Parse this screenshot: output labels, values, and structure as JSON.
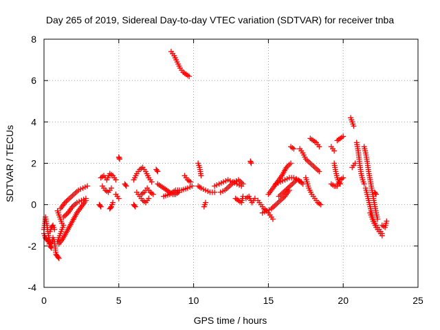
{
  "chart_data": {
    "type": "scatter",
    "title": "Day 265 of 2019, Sidereal Day-to-day VTEC variation (SDTVAR) for receiver tnba",
    "xlabel": "GPS time / hours",
    "ylabel": "SDTVAR / TECUs",
    "xlim": [
      0,
      25
    ],
    "ylim": [
      -4,
      8
    ],
    "x_ticks": [
      0,
      5,
      10,
      15,
      20,
      25
    ],
    "y_ticks": [
      -4,
      -2,
      0,
      2,
      4,
      6,
      8
    ],
    "x_tick_labels": [
      "0",
      "5",
      "10",
      "15",
      "20",
      "25"
    ],
    "y_tick_labels": [
      "-4",
      "-2",
      "0",
      "2",
      "4",
      "6",
      "8"
    ],
    "grid": true,
    "marker": "+",
    "marker_color": "#ff0000",
    "series": [
      {
        "name": "tnba",
        "segments": [
          [
            [
              0.0,
              -1.2
            ],
            [
              0.1,
              -0.6
            ],
            [
              0.2,
              -1.0
            ],
            [
              0.3,
              -1.5
            ],
            [
              0.4,
              -1.8
            ],
            [
              0.5,
              -1.9
            ],
            [
              0.6,
              -1.6
            ],
            [
              0.7,
              -1.8
            ],
            [
              0.8,
              -2.4
            ],
            [
              0.9,
              -2.5
            ],
            [
              1.0,
              -2.6
            ]
          ],
          [
            [
              0.0,
              -1.4
            ],
            [
              0.1,
              -1.6
            ],
            [
              0.2,
              -1.7
            ],
            [
              0.3,
              -1.8
            ],
            [
              0.4,
              -2.0
            ],
            [
              0.5,
              -2.1
            ]
          ],
          [
            [
              0.4,
              -1.3
            ],
            [
              0.5,
              -1.1
            ],
            [
              0.6,
              -1.0
            ],
            [
              0.7,
              -1.2
            ]
          ],
          [
            [
              0.9,
              -1.8
            ],
            [
              1.0,
              -1.6
            ],
            [
              1.1,
              -1.4
            ],
            [
              1.2,
              -1.2
            ],
            [
              1.3,
              -1.0
            ]
          ],
          [
            [
              0.9,
              -0.3
            ],
            [
              1.0,
              -0.5
            ],
            [
              1.1,
              -0.7
            ],
            [
              1.2,
              -0.9
            ]
          ],
          [
            [
              1.0,
              -1.9
            ],
            [
              1.3,
              -1.6
            ],
            [
              1.6,
              -1.2
            ],
            [
              1.9,
              -0.8
            ],
            [
              2.2,
              -0.4
            ],
            [
              2.5,
              -0.1
            ],
            [
              2.8,
              0.2
            ]
          ],
          [
            [
              1.1,
              -0.2
            ],
            [
              1.4,
              0.1
            ],
            [
              1.7,
              0.3
            ],
            [
              2.0,
              0.5
            ],
            [
              2.3,
              0.7
            ],
            [
              2.6,
              0.8
            ],
            [
              2.9,
              0.9
            ]
          ],
          [
            [
              1.3,
              -0.6
            ],
            [
              1.6,
              -0.4
            ],
            [
              1.9,
              -0.1
            ],
            [
              2.2,
              0.1
            ],
            [
              2.5,
              0.2
            ],
            [
              2.8,
              0.3
            ]
          ],
          [
            [
              3.8,
              1.3
            ],
            [
              4.0,
              1.4
            ],
            [
              4.2,
              1.2
            ],
            [
              4.4,
              1.5
            ],
            [
              4.6,
              1.4
            ],
            [
              4.8,
              1.2
            ]
          ],
          [
            [
              3.9,
              0.9
            ],
            [
              4.1,
              0.7
            ],
            [
              4.3,
              0.6
            ],
            [
              4.5,
              0.8
            ]
          ],
          [
            [
              3.7,
              0.0
            ],
            [
              3.8,
              -0.1
            ]
          ],
          [
            [
              4.4,
              -0.2
            ],
            [
              4.5,
              -0.1
            ],
            [
              4.6,
              0.1
            ]
          ],
          [
            [
              4.8,
              0.5
            ],
            [
              5.0,
              0.3
            ]
          ],
          [
            [
              5.0,
              2.3
            ],
            [
              5.05,
              2.2
            ]
          ],
          [
            [
              5.4,
              1.0
            ],
            [
              5.5,
              0.9
            ]
          ],
          [
            [
              6.0,
              0.0
            ],
            [
              6.1,
              -0.1
            ]
          ],
          [
            [
              6.0,
              1.2
            ],
            [
              6.2,
              1.5
            ],
            [
              6.4,
              1.7
            ],
            [
              6.6,
              1.8
            ],
            [
              6.8,
              1.6
            ],
            [
              7.0,
              1.3
            ],
            [
              7.2,
              1.1
            ]
          ],
          [
            [
              6.2,
              0.6
            ],
            [
              6.4,
              0.4
            ],
            [
              6.6,
              0.2
            ],
            [
              6.8,
              0.1
            ],
            [
              7.0,
              0.3
            ]
          ],
          [
            [
              6.5,
              0.5
            ],
            [
              6.7,
              0.6
            ],
            [
              6.9,
              0.8
            ],
            [
              7.1,
              0.6
            ],
            [
              7.3,
              0.5
            ]
          ],
          [
            [
              7.5,
              1.7
            ],
            [
              7.6,
              1.6
            ]
          ],
          [
            [
              7.6,
              1.0
            ],
            [
              7.8,
              0.9
            ],
            [
              8.0,
              0.8
            ],
            [
              8.2,
              0.7
            ],
            [
              8.4,
              0.6
            ],
            [
              8.6,
              0.5
            ],
            [
              8.8,
              0.5
            ],
            [
              9.0,
              0.6
            ]
          ],
          [
            [
              8.5,
              7.4
            ],
            [
              8.7,
              7.2
            ],
            [
              8.9,
              6.9
            ],
            [
              9.1,
              6.6
            ],
            [
              9.3,
              6.4
            ],
            [
              9.5,
              6.3
            ],
            [
              9.7,
              6.2
            ]
          ],
          [
            [
              8.0,
              0.4
            ],
            [
              8.4,
              0.5
            ],
            [
              8.8,
              0.7
            ],
            [
              9.2,
              0.7
            ],
            [
              9.6,
              0.8
            ],
            [
              9.9,
              0.9
            ]
          ],
          [
            [
              9.4,
              1.4
            ],
            [
              9.6,
              1.2
            ],
            [
              9.8,
              1.1
            ]
          ],
          [
            [
              10.3,
              2.0
            ],
            [
              10.4,
              1.8
            ],
            [
              10.5,
              1.4
            ]
          ],
          [
            [
              10.3,
              0.9
            ],
            [
              10.5,
              0.8
            ],
            [
              10.8,
              0.7
            ],
            [
              11.1,
              0.6
            ],
            [
              11.4,
              0.6
            ]
          ],
          [
            [
              10.7,
              -0.1
            ],
            [
              10.8,
              0.1
            ]
          ],
          [
            [
              11.4,
              0.9
            ],
            [
              11.7,
              1.0
            ],
            [
              12.0,
              1.1
            ],
            [
              12.3,
              1.2
            ],
            [
              12.6,
              1.1
            ],
            [
              12.9,
              1.0
            ],
            [
              13.2,
              0.9
            ]
          ],
          [
            [
              11.8,
              0.6
            ],
            [
              12.1,
              0.7
            ],
            [
              12.4,
              0.9
            ],
            [
              12.7,
              1.1
            ],
            [
              13.0,
              1.2
            ],
            [
              13.3,
              1.0
            ]
          ],
          [
            [
              12.8,
              0.3
            ],
            [
              13.0,
              0.2
            ],
            [
              13.2,
              0.1
            ],
            [
              13.3,
              0.4
            ]
          ],
          [
            [
              13.8,
              2.1
            ],
            [
              13.85,
              2.0
            ]
          ],
          [
            [
              13.5,
              0.3
            ],
            [
              13.7,
              0.4
            ],
            [
              13.9,
              0.1
            ],
            [
              14.1,
              0.3
            ]
          ],
          [
            [
              14.3,
              0.2
            ],
            [
              14.5,
              0.0
            ],
            [
              14.7,
              -0.2
            ],
            [
              14.9,
              -0.3
            ],
            [
              15.1,
              -0.5
            ],
            [
              15.3,
              -0.7
            ]
          ],
          [
            [
              14.6,
              -0.4
            ],
            [
              14.9,
              -0.3
            ],
            [
              15.2,
              -0.2
            ],
            [
              15.5,
              0.0
            ],
            [
              15.8,
              0.2
            ],
            [
              16.1,
              0.4
            ],
            [
              16.4,
              0.7
            ]
          ],
          [
            [
              15.0,
              0.5
            ],
            [
              15.3,
              0.8
            ],
            [
              15.6,
              1.1
            ],
            [
              15.9,
              1.4
            ],
            [
              16.2,
              1.8
            ],
            [
              16.5,
              2.0
            ]
          ],
          [
            [
              15.5,
              1.0
            ],
            [
              15.8,
              1.1
            ],
            [
              16.1,
              1.2
            ],
            [
              16.4,
              1.3
            ],
            [
              16.7,
              1.3
            ],
            [
              17.0,
              1.2
            ],
            [
              17.3,
              1.0
            ]
          ],
          [
            [
              15.7,
              0.4
            ],
            [
              16.0,
              0.6
            ],
            [
              16.3,
              0.8
            ],
            [
              16.6,
              1.0
            ],
            [
              16.9,
              1.2
            ],
            [
              17.2,
              1.1
            ]
          ],
          [
            [
              16.5,
              2.8
            ],
            [
              16.7,
              2.7
            ]
          ],
          [
            [
              17.1,
              2.7
            ],
            [
              17.3,
              2.5
            ],
            [
              17.5,
              2.2
            ],
            [
              17.8,
              2.0
            ],
            [
              18.1,
              1.8
            ],
            [
              18.4,
              1.6
            ]
          ],
          [
            [
              17.5,
              1.3
            ],
            [
              17.7,
              0.8
            ],
            [
              17.9,
              0.5
            ],
            [
              18.1,
              0.3
            ],
            [
              18.3,
              0.1
            ],
            [
              18.5,
              0.0
            ]
          ],
          [
            [
              17.8,
              3.2
            ],
            [
              18.0,
              3.1
            ],
            [
              18.2,
              3.0
            ],
            [
              18.4,
              2.8
            ]
          ],
          [
            [
              19.2,
              2.8
            ],
            [
              19.4,
              2.6
            ]
          ],
          [
            [
              19.4,
              2.0
            ],
            [
              19.5,
              1.6
            ],
            [
              19.6,
              1.3
            ],
            [
              19.7,
              1.1
            ],
            [
              19.8,
              1.0
            ]
          ],
          [
            [
              19.2,
              1.0
            ],
            [
              19.4,
              0.9
            ],
            [
              19.6,
              0.9
            ],
            [
              19.8,
              1.2
            ],
            [
              20.0,
              1.3
            ]
          ],
          [
            [
              19.6,
              3.1
            ],
            [
              19.8,
              3.2
            ],
            [
              20.0,
              3.3
            ]
          ],
          [
            [
              20.5,
              4.2
            ],
            [
              20.6,
              4.0
            ],
            [
              20.7,
              3.8
            ]
          ],
          [
            [
              20.6,
              1.8
            ],
            [
              20.8,
              2.0
            ]
          ],
          [
            [
              20.9,
              3.0
            ],
            [
              21.0,
              2.6
            ],
            [
              21.1,
              2.0
            ],
            [
              21.2,
              1.5
            ],
            [
              21.3,
              1.2
            ],
            [
              21.4,
              1.0
            ]
          ],
          [
            [
              21.4,
              2.8
            ],
            [
              21.5,
              2.5
            ],
            [
              21.6,
              2.1
            ],
            [
              21.7,
              1.6
            ],
            [
              21.8,
              1.2
            ],
            [
              21.9,
              0.8
            ],
            [
              22.0,
              0.4
            ],
            [
              22.1,
              0.0
            ],
            [
              22.2,
              -0.4
            ],
            [
              22.3,
              -0.7
            ]
          ],
          [
            [
              21.5,
              0.8
            ],
            [
              21.6,
              0.5
            ],
            [
              21.7,
              0.2
            ],
            [
              21.8,
              -0.1
            ],
            [
              21.9,
              -0.4
            ],
            [
              22.0,
              -0.7
            ],
            [
              22.2,
              -1.0
            ],
            [
              22.4,
              -1.2
            ],
            [
              22.6,
              -1.4
            ]
          ],
          [
            [
              21.8,
              -0.4
            ],
            [
              22.0,
              -0.8
            ],
            [
              22.2,
              -1.1
            ],
            [
              22.4,
              -1.3
            ],
            [
              22.6,
              -1.5
            ]
          ],
          [
            [
              22.1,
              0.6
            ],
            [
              22.2,
              0.5
            ]
          ],
          [
            [
              22.6,
              -1.0
            ],
            [
              22.8,
              -1.1
            ],
            [
              22.9,
              -0.8
            ]
          ]
        ]
      }
    ]
  }
}
